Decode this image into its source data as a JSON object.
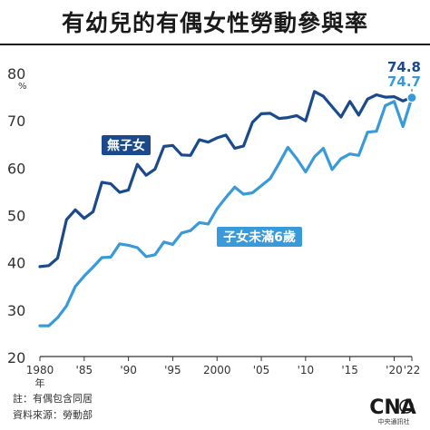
{
  "title": "有幼兒的有偶女性勞動參與率",
  "footnote": {
    "note": "註：有偶包含同居",
    "source": "資料來源：勞動部"
  },
  "logo": {
    "text": "中央通訊社",
    "icon": "cna-logo-icon"
  },
  "colors": {
    "no_children": "#1b4a8c",
    "children_under6": "#3a9ad9",
    "axis": "#333333"
  },
  "chart_data": {
    "type": "line",
    "title": "有幼兒的有偶女性勞動參與率",
    "ylabel": "%",
    "ylim": [
      20,
      80
    ],
    "yticks": [
      20,
      30,
      40,
      50,
      60,
      70,
      80
    ],
    "xlim": [
      1980,
      2022
    ],
    "xticks": [
      {
        "value": 1980,
        "label": "1980"
      },
      {
        "value": 1985,
        "label": "'85"
      },
      {
        "value": 1990,
        "label": "'90"
      },
      {
        "value": 1995,
        "label": "'95"
      },
      {
        "value": 2000,
        "label": "2000"
      },
      {
        "value": 2005,
        "label": "'05"
      },
      {
        "value": 2010,
        "label": "'10"
      },
      {
        "value": 2015,
        "label": "'15"
      },
      {
        "value": 2020,
        "label": "'20"
      },
      {
        "value": 2022,
        "label": "'22"
      }
    ],
    "x_unit_label": "年",
    "x": [
      1980,
      1981,
      1982,
      1983,
      1984,
      1985,
      1986,
      1987,
      1988,
      1989,
      1990,
      1991,
      1992,
      1993,
      1994,
      1995,
      1996,
      1997,
      1998,
      1999,
      2000,
      2001,
      2002,
      2003,
      2004,
      2005,
      2006,
      2007,
      2008,
      2009,
      2010,
      2011,
      2012,
      2013,
      2014,
      2015,
      2016,
      2017,
      2018,
      2019,
      2020,
      2021,
      2022
    ],
    "series": [
      {
        "name": "無子女",
        "color": "#1b4a8c",
        "values": [
          39.0,
          39.2,
          40.8,
          48.9,
          51.0,
          49.2,
          50.6,
          56.8,
          56.5,
          54.7,
          55.2,
          60.6,
          58.3,
          59.6,
          64.4,
          64.6,
          62.6,
          62.5,
          65.8,
          65.3,
          66.2,
          66.8,
          64.0,
          64.5,
          69.5,
          71.3,
          71.4,
          70.3,
          70.5,
          70.9,
          69.8,
          76.0,
          75.0,
          72.8,
          70.6,
          73.9,
          71.0,
          74.4,
          75.3,
          74.8,
          74.9,
          74.0,
          74.8
        ],
        "end_label": "74.8"
      },
      {
        "name": "子女未滿6歲",
        "color": "#3a9ad9",
        "values": [
          26.5,
          26.5,
          28.2,
          30.7,
          34.8,
          37.0,
          38.9,
          40.9,
          41.0,
          43.8,
          43.5,
          43.0,
          41.1,
          41.5,
          44.2,
          43.7,
          46.1,
          46.6,
          48.3,
          48.0,
          51.2,
          53.6,
          55.8,
          54.3,
          54.6,
          56.1,
          57.6,
          60.8,
          64.2,
          61.8,
          59.0,
          62.2,
          64.0,
          59.5,
          61.8,
          62.8,
          62.5,
          67.4,
          67.6,
          73.0,
          73.9,
          68.6,
          74.7
        ],
        "end_label": "74.7"
      }
    ],
    "legend": "inline labels"
  }
}
